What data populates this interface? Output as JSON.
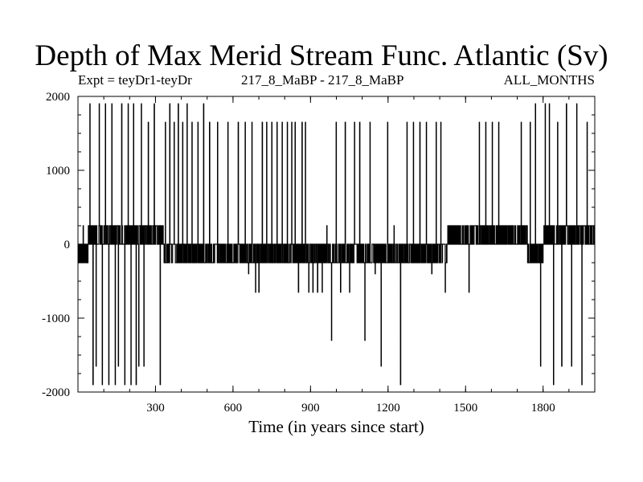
{
  "chart_data": {
    "type": "line",
    "title": "Depth of Max Merid Stream Func. Atlantic (Sv)",
    "subtitle_left": "Expt = teyDr1-teyDr",
    "subtitle_center": "217_8_MaBP - 217_8_MaBP",
    "subtitle_right": "ALL_MONTHS",
    "xlabel": "Time (in years since start)",
    "ylabel": "",
    "xlim": [
      0,
      2000
    ],
    "ylim": [
      -2000,
      2000
    ],
    "x_ticks": [
      300,
      600,
      900,
      1200,
      1500,
      1800
    ],
    "y_ticks": [
      -2000,
      -1000,
      0,
      1000,
      2000
    ],
    "y_tick_labels": [
      "-2000",
      "-1000",
      "0",
      "1000",
      "2000"
    ],
    "x_tick_labels": [
      "300",
      "600",
      "900",
      "1200",
      "1500",
      "1800"
    ],
    "grid": false,
    "line_color": "#000000",
    "levels": [
      1900,
      1650,
      250,
      0,
      -250,
      -650,
      -1300,
      -1650,
      -1900
    ],
    "segments": [
      {
        "from": 0,
        "to": 40,
        "level": 0,
        "alt": -250,
        "spikes": [
          250
        ]
      },
      {
        "from": 40,
        "to": 100,
        "level": 0,
        "alt": 250,
        "spikes": [
          1900,
          -1900,
          -1650,
          1900,
          -1900
        ]
      },
      {
        "from": 100,
        "to": 200,
        "level": 0,
        "alt": 250,
        "spikes": [
          1900,
          -1900,
          1900,
          -1900,
          -1650,
          1900,
          -1900,
          1900
        ]
      },
      {
        "from": 200,
        "to": 260,
        "level": 0,
        "alt": 250,
        "spikes": [
          -1900,
          1900,
          -1900,
          -1650,
          1900,
          -1650
        ]
      },
      {
        "from": 260,
        "to": 330,
        "level": 0,
        "alt": 250,
        "spikes": [
          1650,
          1900,
          -1900
        ]
      },
      {
        "from": 330,
        "to": 430,
        "level": -250,
        "alt": 0,
        "spikes": [
          1650,
          1900,
          1650,
          1900,
          1650,
          1900
        ]
      },
      {
        "from": 430,
        "to": 520,
        "level": -250,
        "alt": 0,
        "spikes": [
          1650,
          1650,
          1900,
          1650
        ]
      },
      {
        "from": 520,
        "to": 640,
        "level": -250,
        "alt": 0,
        "spikes": [
          1650,
          1650,
          1650
        ]
      },
      {
        "from": 640,
        "to": 720,
        "level": -250,
        "alt": 0,
        "spikes": [
          1650,
          -400,
          1650,
          -650,
          -650,
          1650
        ]
      },
      {
        "from": 720,
        "to": 820,
        "level": -250,
        "alt": 0,
        "spikes": [
          1650,
          1650,
          1650,
          1650,
          1650
        ]
      },
      {
        "from": 820,
        "to": 900,
        "level": 0,
        "alt": -250,
        "spikes": [
          1650,
          1650,
          -650,
          1650,
          1650,
          -650
        ]
      },
      {
        "from": 900,
        "to": 990,
        "level": 0,
        "alt": -250,
        "spikes": [
          -650,
          -650,
          -650,
          250,
          -1300
        ]
      },
      {
        "from": 990,
        "to": 1060,
        "level": -250,
        "alt": 0,
        "spikes": [
          1650,
          -650,
          1650,
          -650
        ]
      },
      {
        "from": 1060,
        "to": 1160,
        "level": 0,
        "alt": -250,
        "spikes": [
          1650,
          1650,
          -1300,
          1650,
          -400
        ]
      },
      {
        "from": 1160,
        "to": 1260,
        "level": 0,
        "alt": -250,
        "spikes": [
          -1650,
          1650,
          250,
          -1900
        ]
      },
      {
        "from": 1260,
        "to": 1360,
        "level": 0,
        "alt": -250,
        "spikes": [
          1650,
          1650,
          1650,
          1650
        ]
      },
      {
        "from": 1360,
        "to": 1430,
        "level": 0,
        "alt": -250,
        "spikes": [
          -400,
          1650,
          1650,
          -650
        ]
      },
      {
        "from": 1430,
        "to": 1540,
        "level": 0,
        "alt": 250,
        "spikes": [
          250,
          -650
        ]
      },
      {
        "from": 1540,
        "to": 1640,
        "level": 0,
        "alt": 250,
        "spikes": [
          1650,
          1650,
          1650,
          1650
        ]
      },
      {
        "from": 1640,
        "to": 1740,
        "level": 0,
        "alt": 250,
        "spikes": [
          250,
          1650
        ]
      },
      {
        "from": 1740,
        "to": 1800,
        "level": 0,
        "alt": -250,
        "spikes": [
          1650,
          1900,
          -1650
        ]
      },
      {
        "from": 1800,
        "to": 1880,
        "level": 0,
        "alt": 250,
        "spikes": [
          1900,
          1900,
          -1900,
          1650,
          -1650
        ]
      },
      {
        "from": 1880,
        "to": 2000,
        "level": 250,
        "alt": 0,
        "spikes": [
          1900,
          -1650,
          1900,
          -1900,
          1650,
          250
        ]
      }
    ]
  }
}
